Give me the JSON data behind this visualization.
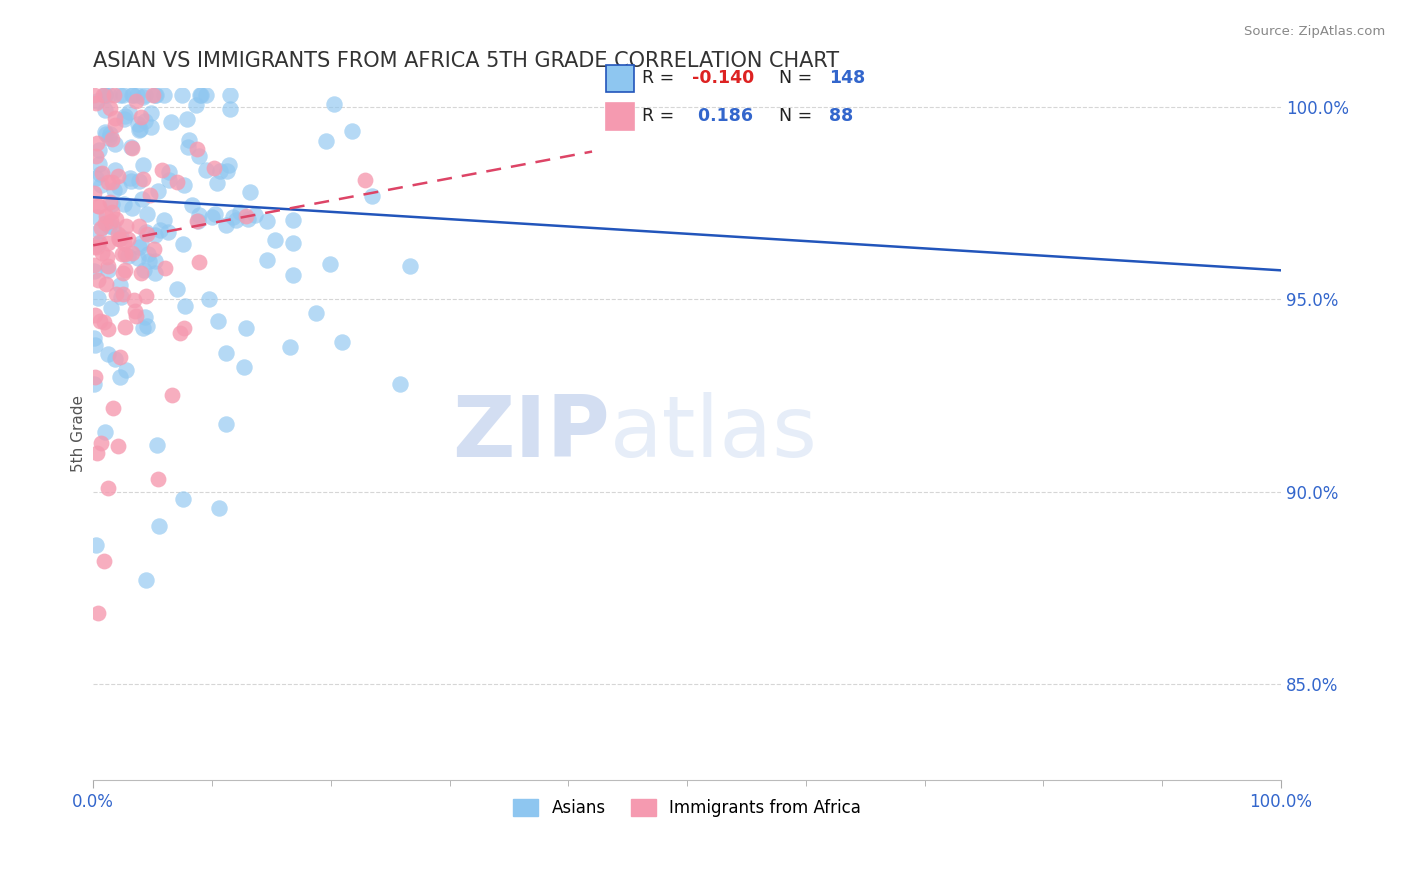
{
  "title": "ASIAN VS IMMIGRANTS FROM AFRICA 5TH GRADE CORRELATION CHART",
  "source_text": "Source: ZipAtlas.com",
  "ylabel": "5th Grade",
  "watermark_zip": "ZIP",
  "watermark_atlas": "atlas",
  "xlim": [
    0.0,
    1.0
  ],
  "ylim": [
    0.825,
    1.005
  ],
  "yticks": [
    0.85,
    0.9,
    0.95,
    1.0
  ],
  "ytick_labels": [
    "85.0%",
    "90.0%",
    "95.0%",
    "100.0%"
  ],
  "xtick_labels": [
    "0.0%",
    "100.0%"
  ],
  "asian_color": "#8ec6f0",
  "african_color": "#f59ab0",
  "asian_line_color": "#2255bb",
  "african_line_color": "#dd4466",
  "asian_R": -0.14,
  "asian_N": 148,
  "african_R": 0.186,
  "african_N": 88,
  "legend_label_asian": "Asians",
  "legend_label_african": "Immigrants from Africa",
  "title_color": "#333333",
  "title_fontsize": 15,
  "axis_label_color": "#555555",
  "tick_color": "#3366cc",
  "background_color": "#ffffff",
  "source_color": "#888888"
}
